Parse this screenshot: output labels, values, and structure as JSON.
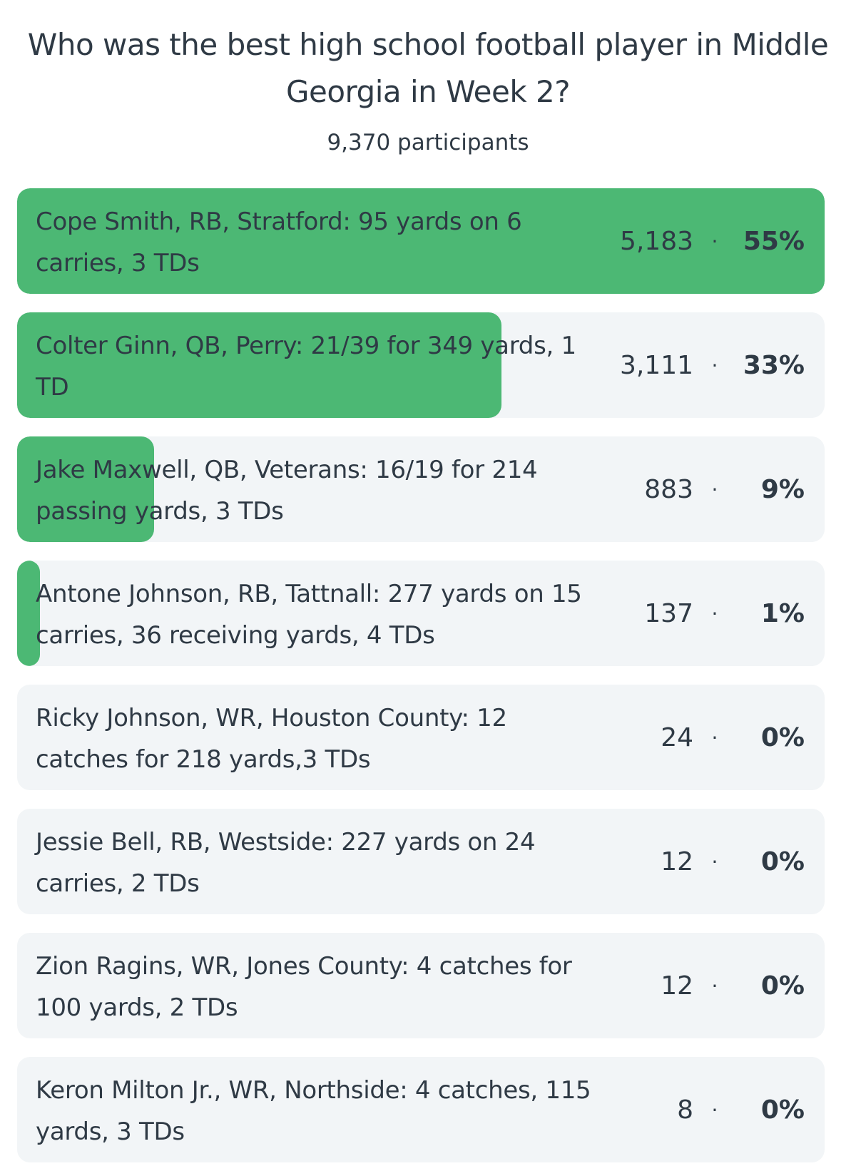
{
  "poll": {
    "title": "Who was the best high school football player in Middle Georgia in Week 2?",
    "participants": "9,370 participants",
    "accent_color": "#4cb874",
    "option_background": "#f2f5f7",
    "separator": "·",
    "options": [
      {
        "label": "Cope Smith, RB, Stratford: 95 yards on 6 carries, 3 TDs",
        "votes": "5,183",
        "percent": "55%",
        "share": 1.0
      },
      {
        "label": "Colter Ginn, QB, Perry: 21/39 for 349 yards, 1 TD",
        "votes": "3,111",
        "percent": "33%",
        "share": 0.6
      },
      {
        "label": "Jake Maxwell, QB, Veterans: 16/19 for 214 passing yards, 3 TDs",
        "votes": "883",
        "percent": "9%",
        "share": 0.17
      },
      {
        "label": "Antone Johnson, RB, Tattnall: 277 yards on 15 carries, 36 receiving yards, 4 TDs",
        "votes": "137",
        "percent": "1%",
        "share": 0.028
      },
      {
        "label": "Ricky Johnson, WR, Houston County: 12 catches for 218 yards,3 TDs",
        "votes": "24",
        "percent": "0%",
        "share": 0
      },
      {
        "label": "Jessie Bell, RB, Westside: 227 yards on 24 carries, 2 TDs",
        "votes": "12",
        "percent": "0%",
        "share": 0
      },
      {
        "label": "Zion Ragins, WR, Jones County: 4 catches for 100 yards, 2 TDs",
        "votes": "12",
        "percent": "0%",
        "share": 0
      },
      {
        "label": "Keron Milton Jr., WR, Northside: 4 catches, 115 yards, 3 TDs",
        "votes": "8",
        "percent": "0%",
        "share": 0
      }
    ]
  }
}
